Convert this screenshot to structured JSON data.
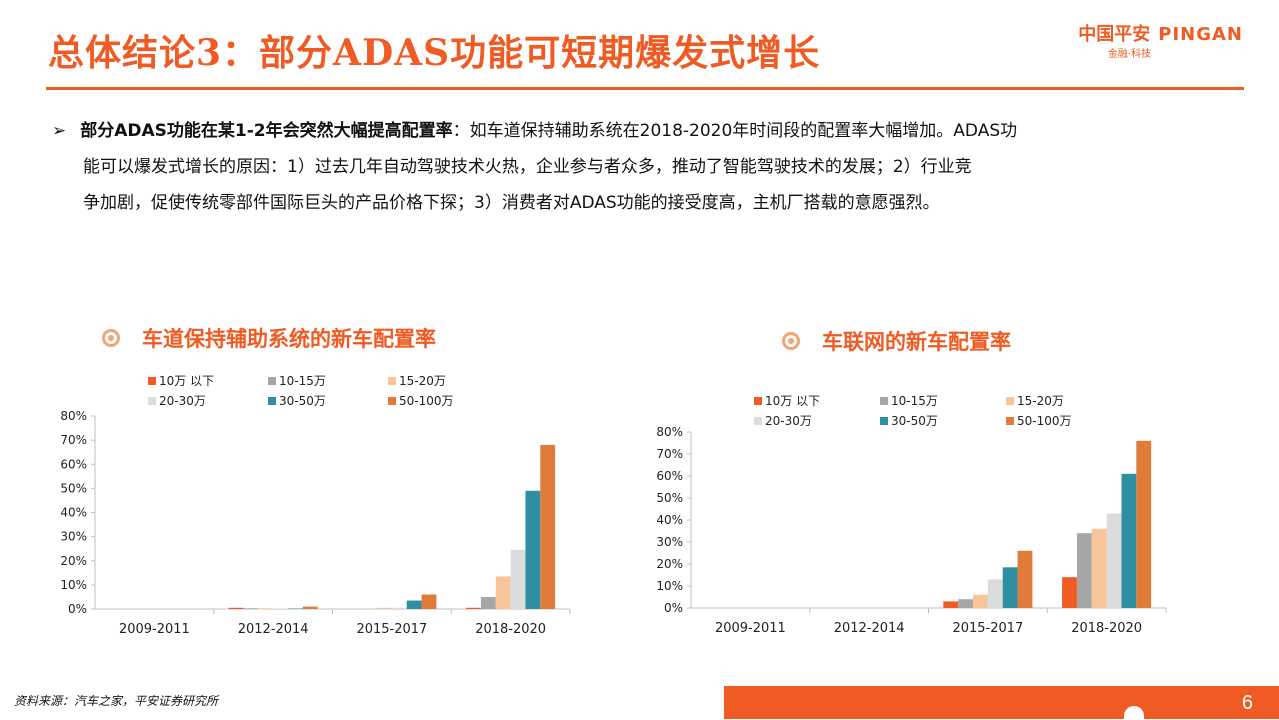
{
  "header": {
    "title": "总体结论3：部分ADAS功能可短期爆发式增长",
    "logo_cn": "中国平安",
    "logo_en": "PINGAN",
    "logo_sub": "金融·科技"
  },
  "bullet": {
    "arrow": "➢",
    "lead": "部分ADAS功能在某1-2年会突然大幅提高配置率",
    "text_1": "：如车道保持辅助系统在2018-2020年时间段的配置率大幅增加。ADAS功",
    "text_2": "能可以爆发式增长的原因：1）过去几年自动驾驶技术火热，企业参与者众多，推动了智能驾驶技术的发展；2）行业竞",
    "text_3": "争加剧，促使传统零部件国际巨头的产品价格下探；3）消费者对ADAS功能的接受度高，主机厂搭载的意愿强烈。"
  },
  "charts_meta": {
    "left_title": "车道保持辅助系统的新车配置率",
    "right_title": "车联网的新车配置率"
  },
  "chart_data": [
    {
      "type": "bar",
      "title": "车道保持辅助系统的新车配置率",
      "categories": [
        "2009-2011",
        "2012-2014",
        "2015-2017",
        "2018-2020"
      ],
      "ylim": [
        0,
        80
      ],
      "y_ticks": [
        "0%",
        "10%",
        "20%",
        "30%",
        "40%",
        "50%",
        "60%",
        "70%",
        "80%"
      ],
      "legend_position": "top",
      "series": [
        {
          "name": "10万 以下",
          "color": "#f05a23",
          "values": [
            0,
            0.5,
            0,
            0.5
          ]
        },
        {
          "name": "10-15万",
          "color": "#a6a6a6",
          "values": [
            0,
            0.3,
            0,
            5
          ]
        },
        {
          "name": "15-20万",
          "color": "#f8c59a",
          "values": [
            0,
            0.3,
            0.5,
            13.5
          ]
        },
        {
          "name": "20-30万",
          "color": "#dcdcdc",
          "values": [
            0,
            0.2,
            0.5,
            24.5
          ]
        },
        {
          "name": "30-50万",
          "color": "#2e8fa3",
          "values": [
            0,
            0.2,
            3.5,
            49
          ]
        },
        {
          "name": "50-100万",
          "color": "#e07b39",
          "values": [
            0,
            1,
            6,
            68
          ]
        }
      ]
    },
    {
      "type": "bar",
      "title": "车联网的新车配置率",
      "categories": [
        "2009-2011",
        "2012-2014",
        "2015-2017",
        "2018-2020"
      ],
      "ylim": [
        0,
        80
      ],
      "y_ticks": [
        "0%",
        "10%",
        "20%",
        "30%",
        "40%",
        "50%",
        "60%",
        "70%",
        "80%"
      ],
      "legend_position": "top",
      "series": [
        {
          "name": "10万 以下",
          "color": "#f05a23",
          "values": [
            0,
            0,
            3,
            14
          ]
        },
        {
          "name": "10-15万",
          "color": "#a6a6a6",
          "values": [
            0,
            0,
            4,
            34
          ]
        },
        {
          "name": "15-20万",
          "color": "#f8c59a",
          "values": [
            0,
            0,
            6,
            36
          ]
        },
        {
          "name": "20-30万",
          "color": "#dcdcdc",
          "values": [
            0,
            0,
            13,
            43
          ]
        },
        {
          "name": "30-50万",
          "color": "#2e8fa3",
          "values": [
            0,
            0,
            18.5,
            61
          ]
        },
        {
          "name": "50-100万",
          "color": "#e07b39",
          "values": [
            0,
            0,
            26,
            76
          ]
        }
      ]
    }
  ],
  "footer": {
    "source": "资料来源：汽车之家，平安证券研究所",
    "page_number": "6"
  },
  "colors": {
    "accent": "#f05a23",
    "ring": "#f0a673"
  }
}
